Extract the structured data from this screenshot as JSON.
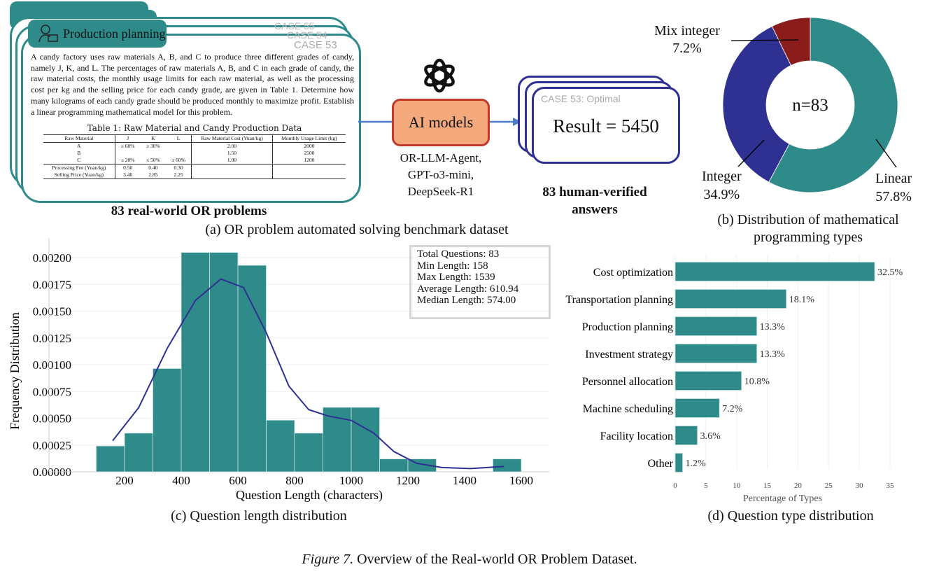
{
  "panel_a": {
    "category_tab": "Production planning",
    "case_labels": [
      "CASE 55",
      "CASE 54",
      "CASE 53"
    ],
    "problem_text": "A candy factory uses raw materials A, B, and C to produce three different grades of candy, namely J, K, and L. The percentages of raw materials A, B, and C in each grade of candy, the raw material costs, the monthly usage limits for each raw material, as well as the processing cost per kg and the selling price for each candy grade, are given in Table 1. Determine how many kilograms of each candy grade should be produced monthly to maximize profit. Establish a linear programming mathematical model for this problem.",
    "table": {
      "title": "Table 1: Raw Material and Candy Production Data",
      "headers": [
        "Raw Material",
        "J",
        "K",
        "L",
        "Raw Material Cost (Yuan/kg)",
        "Monthly Usage Limit (kg)"
      ],
      "rows": [
        [
          "A",
          "≥ 60%",
          "≥ 30%",
          "",
          "2.00",
          "2000"
        ],
        [
          "B",
          "",
          "",
          "",
          "1.50",
          "2500"
        ],
        [
          "C",
          "≤ 20%",
          "≤ 50%",
          "≤ 60%",
          "1.00",
          "1200"
        ]
      ],
      "footer_rows": [
        [
          "Processing Fee (Yuan/kg)",
          "0.50",
          "0.40",
          "0.30"
        ],
        [
          "Selling Price (Yuan/kg)",
          "3.40",
          "2.85",
          "2.25"
        ]
      ]
    },
    "dataset_label": "83 real-world OR problems",
    "ai_box": "AI models",
    "models": [
      "OR-LLM-Agent,",
      "GPT-o3-mini,",
      "DeepSeek-R1"
    ],
    "result_case": "CASE 53: Optimal",
    "result": "Result = 5450",
    "answers_label": [
      "83 human-verified",
      "answers"
    ],
    "caption": "(a) OR problem automated solving benchmark dataset"
  },
  "chart_data": [
    {
      "type": "pie",
      "center_label": "n=83",
      "slices": [
        {
          "name": "Linear",
          "value": 57.8,
          "label": "57.8%",
          "color": "#2e8b8a"
        },
        {
          "name": "Integer",
          "value": 34.9,
          "label": "34.9%",
          "color": "#2e3192"
        },
        {
          "name": "Mix integer",
          "value": 7.2,
          "label": "7.2%",
          "color": "#8b1c1c"
        }
      ],
      "caption": [
        "(b) Distribution of mathematical",
        "programming types"
      ]
    },
    {
      "type": "bar",
      "xlabel": "Question Length (characters)",
      "ylabel": "Frequency Distribution",
      "bin_edges": [
        100,
        200,
        300,
        400,
        500,
        600,
        700,
        800,
        900,
        1000,
        1100,
        1200,
        1300,
        1400,
        1500,
        1600
      ],
      "values": [
        0.000241,
        0.000361,
        0.000964,
        0.002048,
        0.002048,
        0.001928,
        0.000482,
        0.000361,
        0.000602,
        0.000602,
        0.00012,
        0.00012,
        0,
        0,
        0.00012
      ],
      "kde_color": "#2e3192",
      "bar_color": "#2e8b8a",
      "xticks": [
        "200",
        "400",
        "600",
        "800",
        "1000",
        "1200",
        "1400",
        "1600"
      ],
      "yticks": [
        "0.00000",
        "0.00025",
        "0.00050",
        "0.00075",
        "0.00100",
        "0.00125",
        "0.00150",
        "0.00175",
        "0.00200"
      ],
      "stats": [
        "Total Questions: 83",
        "Min Length: 158",
        "Max Length: 1539",
        "Average Length: 610.94",
        "Median Length: 574.00"
      ],
      "caption": "(c) Question length distribution"
    },
    {
      "type": "bar",
      "orientation": "horizontal",
      "categories": [
        "Cost optimization",
        "Transportation planning",
        "Production planning",
        "Investment strategy",
        "Personnel allocation",
        "Machine scheduling",
        "Facility location",
        "Other"
      ],
      "values": [
        32.5,
        18.1,
        13.3,
        13.3,
        10.8,
        7.2,
        3.6,
        1.2
      ],
      "labels": [
        "32.5%",
        "18.1%",
        "13.3%",
        "13.3%",
        "10.8%",
        "7.2%",
        "3.6%",
        "1.2%"
      ],
      "xticks": [
        "0",
        "5",
        "10",
        "15",
        "20",
        "25",
        "30",
        "35"
      ],
      "xlabel": "Percentage of Types",
      "xlim": [
        0,
        35
      ],
      "caption": "(d) Question type distribution"
    }
  ],
  "figure_caption": {
    "label": "Figure 7.",
    "text": " Overview of the Real-world OR Problem Dataset."
  }
}
